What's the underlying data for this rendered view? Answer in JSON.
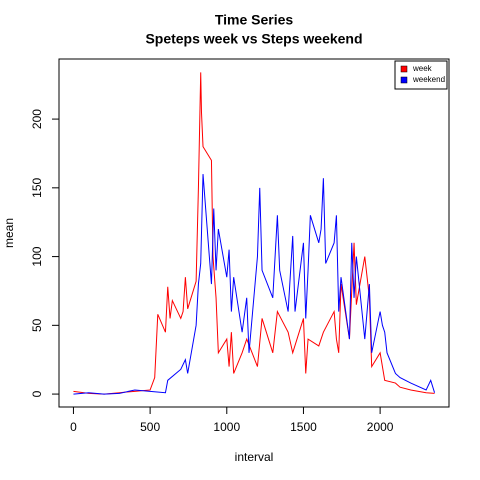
{
  "chart_data": {
    "type": "line",
    "title": "Time Series",
    "subtitle": "Speteps week vs Steps weekend",
    "x_label": "interval",
    "y_label": "mean",
    "xlim": [
      -94.2,
      2449.2
    ],
    "xticks": [
      0,
      500,
      1000,
      1500,
      2000
    ],
    "ylim": [
      -9.4,
      243.7
    ],
    "yticks": [
      0,
      50,
      100,
      150,
      200
    ],
    "legend": "topright",
    "series": [
      {
        "name": "week",
        "color": "#ff0000",
        "x": [
          0,
          100,
          200,
          300,
          400,
          500,
          530,
          550,
          600,
          615,
          630,
          645,
          700,
          715,
          730,
          745,
          800,
          815,
          830,
          835,
          845,
          900,
          910,
          930,
          945,
          1000,
          1015,
          1030,
          1045,
          1100,
          1130,
          1200,
          1230,
          1300,
          1330,
          1400,
          1430,
          1500,
          1515,
          1530,
          1600,
          1630,
          1700,
          1715,
          1730,
          1745,
          1800,
          1830,
          1845,
          1900,
          1930,
          1945,
          2000,
          2030,
          2100,
          2130,
          2200,
          2300,
          2355
        ],
        "values": [
          2,
          0.5,
          0,
          1,
          2,
          3,
          12,
          58,
          45,
          78,
          55,
          68,
          55,
          60,
          85,
          62,
          82,
          150,
          234,
          205,
          180,
          170,
          100,
          70,
          30,
          40,
          20,
          45,
          15,
          30,
          40,
          20,
          55,
          30,
          60,
          45,
          30,
          55,
          15,
          40,
          35,
          45,
          60,
          40,
          30,
          80,
          40,
          110,
          65,
          100,
          70,
          20,
          30,
          10,
          8,
          5,
          3,
          1,
          0.5
        ]
      },
      {
        "name": "weekend",
        "color": "#0000ff",
        "x": [
          0,
          100,
          200,
          300,
          400,
          500,
          600,
          615,
          700,
          730,
          745,
          800,
          815,
          830,
          845,
          900,
          915,
          930,
          945,
          1000,
          1015,
          1030,
          1045,
          1100,
          1130,
          1145,
          1200,
          1215,
          1230,
          1300,
          1330,
          1345,
          1400,
          1430,
          1445,
          1500,
          1515,
          1530,
          1545,
          1600,
          1615,
          1630,
          1645,
          1700,
          1715,
          1730,
          1745,
          1800,
          1815,
          1830,
          1845,
          1900,
          1930,
          1945,
          2000,
          2015,
          2030,
          2045,
          2100,
          2130,
          2200,
          2300,
          2330,
          2355
        ],
        "values": [
          0,
          1,
          0,
          0.5,
          3,
          2,
          1,
          10,
          18,
          25,
          15,
          50,
          80,
          95,
          160,
          80,
          135,
          90,
          120,
          85,
          105,
          60,
          85,
          45,
          70,
          30,
          100,
          150,
          90,
          70,
          130,
          90,
          60,
          115,
          60,
          110,
          55,
          90,
          130,
          110,
          120,
          157,
          95,
          110,
          130,
          60,
          85,
          40,
          110,
          70,
          100,
          40,
          80,
          30,
          60,
          50,
          45,
          30,
          15,
          12,
          8,
          3,
          10,
          1
        ]
      }
    ]
  }
}
